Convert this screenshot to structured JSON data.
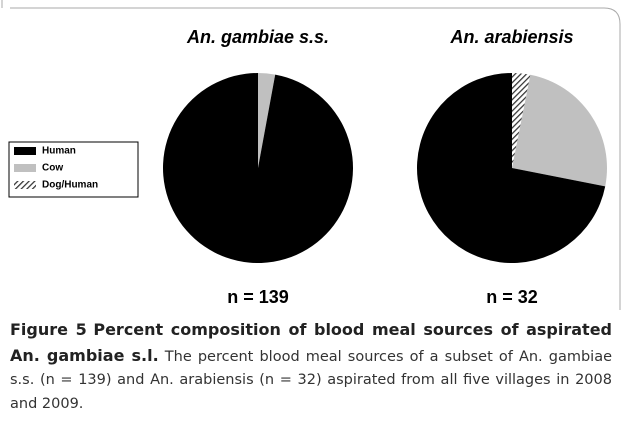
{
  "chart_data": [
    {
      "type": "pie",
      "title": "An. gambiae s.s.",
      "annotation": "n = 139",
      "labels": [
        "Human",
        "Cow",
        "Dog/Human"
      ],
      "values": [
        97.1,
        2.9,
        0
      ],
      "colors": [
        "#000000",
        "#c0c0c0",
        "#7a7a7a"
      ],
      "hatch": [
        false,
        false,
        true
      ]
    },
    {
      "type": "pie",
      "title": "An. arabiensis",
      "annotation": "n = 32",
      "labels": [
        "Human",
        "Cow",
        "Dog/Human"
      ],
      "values": [
        71.9,
        25,
        3.1
      ],
      "colors": [
        "#000000",
        "#c0c0c0",
        "#7a7a7a"
      ],
      "hatch": [
        false,
        false,
        true
      ]
    }
  ],
  "caption": {
    "label": "Figure 5",
    "title": "Percent composition of blood meal sources of aspirated An. gambiae s.l.",
    "text": "The percent blood meal sources of a subset of An. gambiae s.s. (n = 139) and An. arabiensis (n = 32) aspirated from all five villages in 2008 and 2009."
  }
}
